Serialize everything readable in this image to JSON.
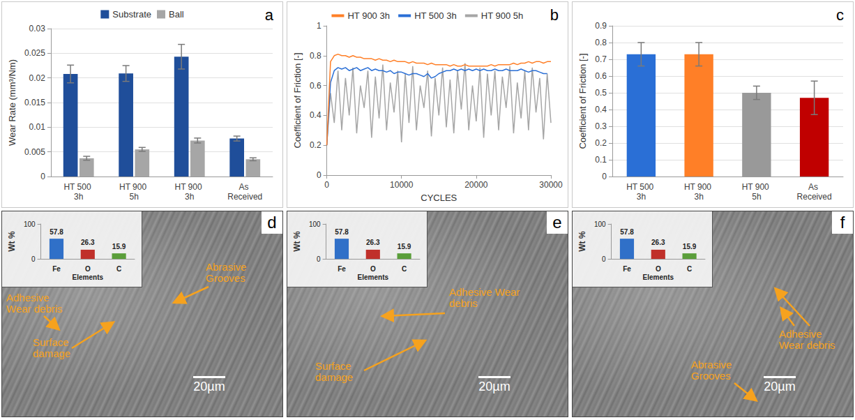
{
  "chart_data": [
    {
      "panel": "a",
      "type": "bar",
      "categories": [
        "HT 500 3h",
        "HT 900 5h",
        "HT 900 3h",
        "As Received"
      ],
      "series": [
        {
          "name": "Substrate",
          "color": "#1f4e9a",
          "values": [
            0.0208,
            0.0209,
            0.0243,
            0.0077
          ],
          "errors": [
            0.0018,
            0.0016,
            0.0025,
            0.0005
          ]
        },
        {
          "name": "Ball",
          "color": "#a6a6a6",
          "values": [
            0.0037,
            0.0055,
            0.0073,
            0.0035
          ],
          "errors": [
            0.0004,
            0.0004,
            0.0005,
            0.0003
          ]
        }
      ],
      "y_label": "Wear Rate (mm³/Nm)",
      "ylim": [
        0,
        0.03
      ],
      "yticks": [
        0,
        0.005,
        0.01,
        0.015,
        0.02,
        0.025,
        0.03
      ],
      "grid": true,
      "legend": "top"
    },
    {
      "panel": "b",
      "type": "line",
      "x": [
        0,
        500,
        1000,
        1500,
        2000,
        2500,
        3000,
        3500,
        4000,
        4500,
        5000,
        5500,
        6000,
        6500,
        7000,
        7500,
        8000,
        8500,
        9000,
        9500,
        10000,
        10500,
        11000,
        11500,
        12000,
        12500,
        13000,
        13500,
        14000,
        14500,
        15000,
        15500,
        16000,
        16500,
        17000,
        17500,
        18000,
        18500,
        19000,
        19500,
        20000,
        20500,
        21000,
        21500,
        22000,
        22500,
        23000,
        23500,
        24000,
        24500,
        25000,
        25500,
        26000,
        26500,
        27000,
        27500,
        28000,
        28500,
        29000,
        29500,
        30000
      ],
      "series": [
        {
          "name": "HT 900 3h",
          "color": "#ff7f27",
          "values": [
            0.2,
            0.76,
            0.8,
            0.81,
            0.8,
            0.8,
            0.79,
            0.8,
            0.79,
            0.79,
            0.78,
            0.78,
            0.78,
            0.77,
            0.78,
            0.77,
            0.77,
            0.76,
            0.77,
            0.76,
            0.76,
            0.76,
            0.75,
            0.76,
            0.75,
            0.75,
            0.75,
            0.74,
            0.75,
            0.74,
            0.74,
            0.74,
            0.74,
            0.73,
            0.74,
            0.73,
            0.73,
            0.74,
            0.73,
            0.73,
            0.73,
            0.73,
            0.73,
            0.73,
            0.74,
            0.73,
            0.74,
            0.74,
            0.74,
            0.74,
            0.75,
            0.74,
            0.75,
            0.75,
            0.76,
            0.75,
            0.76,
            0.76,
            0.75,
            0.76,
            0.76
          ]
        },
        {
          "name": "HT 500 3h",
          "color": "#2a6fd6",
          "values": [
            0.2,
            0.62,
            0.7,
            0.72,
            0.71,
            0.72,
            0.7,
            0.71,
            0.72,
            0.7,
            0.71,
            0.72,
            0.7,
            0.71,
            0.7,
            0.7,
            0.69,
            0.7,
            0.68,
            0.69,
            0.69,
            0.68,
            0.67,
            0.68,
            0.68,
            0.67,
            0.66,
            0.68,
            0.65,
            0.66,
            0.68,
            0.69,
            0.7,
            0.7,
            0.71,
            0.7,
            0.71,
            0.7,
            0.71,
            0.7,
            0.71,
            0.7,
            0.71,
            0.7,
            0.7,
            0.71,
            0.7,
            0.7,
            0.71,
            0.7,
            0.7,
            0.7,
            0.71,
            0.7,
            0.69,
            0.7,
            0.7,
            0.69,
            0.68,
            0.68,
            null
          ]
        },
        {
          "name": "HT 900 5h",
          "color": "#a6a6a6",
          "values": [
            0.2,
            0.55,
            0.35,
            0.7,
            0.3,
            0.65,
            0.4,
            0.72,
            0.28,
            0.6,
            0.45,
            0.7,
            0.25,
            0.66,
            0.38,
            0.74,
            0.3,
            0.62,
            0.42,
            0.7,
            0.22,
            0.68,
            0.35,
            0.73,
            0.3,
            0.6,
            0.45,
            0.7,
            0.26,
            0.65,
            0.4,
            0.72,
            0.32,
            0.64,
            0.28,
            0.7,
            0.44,
            0.75,
            0.3,
            0.6,
            0.36,
            0.72,
            0.25,
            0.68,
            0.4,
            0.7,
            0.3,
            0.66,
            0.45,
            0.73,
            0.28,
            0.62,
            0.38,
            0.7,
            0.3,
            0.72,
            0.42,
            0.65,
            0.24,
            0.68,
            0.35
          ]
        }
      ],
      "x_label": "CYCLES",
      "y_label": "Coefficient of Friction [-]",
      "xlim": [
        0,
        30000
      ],
      "xticks": [
        0,
        10000,
        20000,
        30000
      ],
      "ylim": [
        0,
        1
      ],
      "yticks": [
        0,
        0.2,
        0.4,
        0.6,
        0.8,
        1
      ],
      "grid": false,
      "legend": "top"
    },
    {
      "panel": "c",
      "type": "bar",
      "categories": [
        "HT 500 3h",
        "HT 900 3h",
        "HT 900 5h",
        "As Received"
      ],
      "values": [
        0.73,
        0.73,
        0.5,
        0.47
      ],
      "errors": [
        0.07,
        0.07,
        0.04,
        0.1
      ],
      "colors": [
        "#2a6fd6",
        "#ff7f27",
        "#999999",
        "#c00000"
      ],
      "y_label": "Coefficient of Friction [-]",
      "ylim": [
        0,
        0.9
      ],
      "yticks": [
        0,
        0.1,
        0.2,
        0.3,
        0.4,
        0.5,
        0.6,
        0.7,
        0.8,
        0.9
      ],
      "grid": true
    },
    {
      "panel": "d",
      "type": "bar",
      "categories": [
        "Fe",
        "O",
        "C"
      ],
      "values": [
        57.8,
        26.3,
        15.9
      ],
      "colors": [
        "#3070c8",
        "#c0302a",
        "#5a9e3a"
      ],
      "x_label": "Elements",
      "y_label": "Wt %",
      "ylim": [
        0,
        100
      ],
      "yticks": [
        0,
        100
      ],
      "grid": false,
      "data_labels": true,
      "annotations": [
        "Adhesive Wear debris",
        "Abrasive Grooves",
        "Surface damage"
      ],
      "scale_bar": "20µm"
    },
    {
      "panel": "e",
      "type": "bar",
      "categories": [
        "Fe",
        "O",
        "C"
      ],
      "values": [
        57.8,
        26.3,
        15.9
      ],
      "colors": [
        "#3070c8",
        "#c0302a",
        "#5a9e3a"
      ],
      "x_label": "Elements",
      "y_label": "Wt %",
      "ylim": [
        0,
        100
      ],
      "yticks": [
        0,
        100
      ],
      "grid": false,
      "data_labels": true,
      "annotations": [
        "Adhesive Wear debris",
        "Surface damage"
      ],
      "scale_bar": "20µm"
    },
    {
      "panel": "f",
      "type": "bar",
      "categories": [
        "Fe",
        "O",
        "C"
      ],
      "values": [
        57.8,
        26.3,
        15.9
      ],
      "colors": [
        "#3070c8",
        "#c0302a",
        "#5a9e3a"
      ],
      "x_label": "Elements",
      "y_label": "Wt %",
      "ylim": [
        0,
        100
      ],
      "yticks": [
        0,
        100
      ],
      "grid": false,
      "data_labels": true,
      "annotations": [
        "Adhesive Wear debris",
        "Abrasive Grooves"
      ],
      "scale_bar": "20µm"
    }
  ]
}
